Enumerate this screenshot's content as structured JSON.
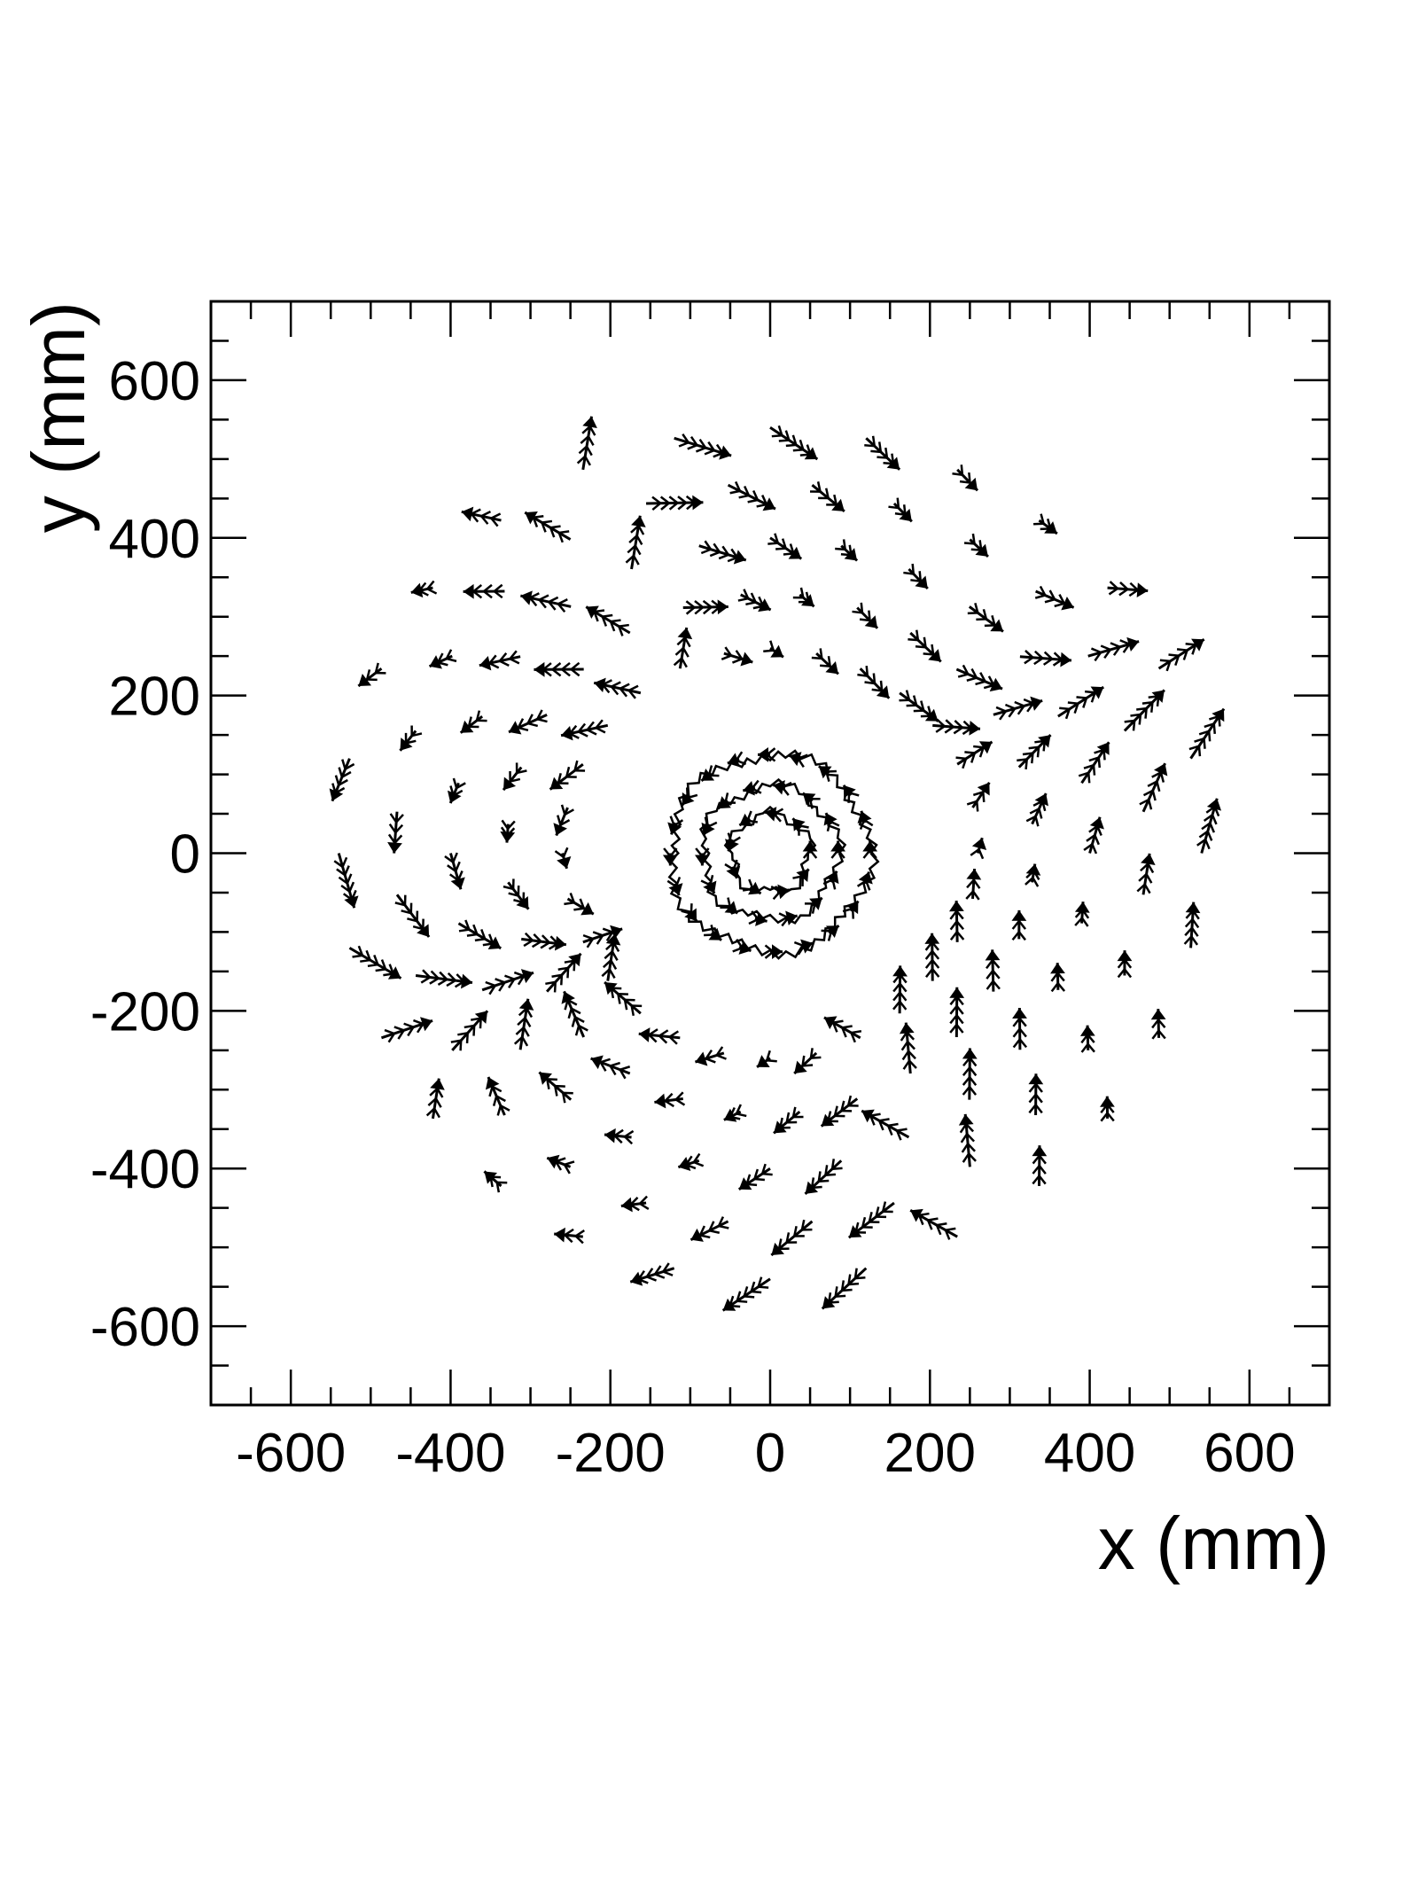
{
  "chart_data": {
    "type": "scatter",
    "subtype": "vector-field",
    "title": "",
    "xlabel": "x (mm)",
    "ylabel": "y (mm)",
    "xlim": [
      -700,
      700
    ],
    "ylim": [
      -700,
      700
    ],
    "xticks": [
      -600,
      -400,
      -200,
      0,
      200,
      400,
      600
    ],
    "yticks": [
      -600,
      -400,
      -200,
      0,
      200,
      400,
      600
    ],
    "xtick_labels": [
      "-600",
      "-400",
      "-200",
      "0",
      "200",
      "400",
      "600"
    ],
    "ytick_labels": [
      "-600",
      "-400",
      "-200",
      "0",
      "200",
      "400",
      "600"
    ],
    "grid": false,
    "legend": "none",
    "color": "#000000",
    "outer_ring": {
      "description_units": "mm",
      "radii": [
        260,
        330,
        400,
        470,
        540
      ],
      "points_per_ring": 28
    },
    "inner_rings": {
      "radii": [
        50,
        85,
        125
      ],
      "points_per_ring": [
        18,
        28,
        40
      ]
    }
  }
}
